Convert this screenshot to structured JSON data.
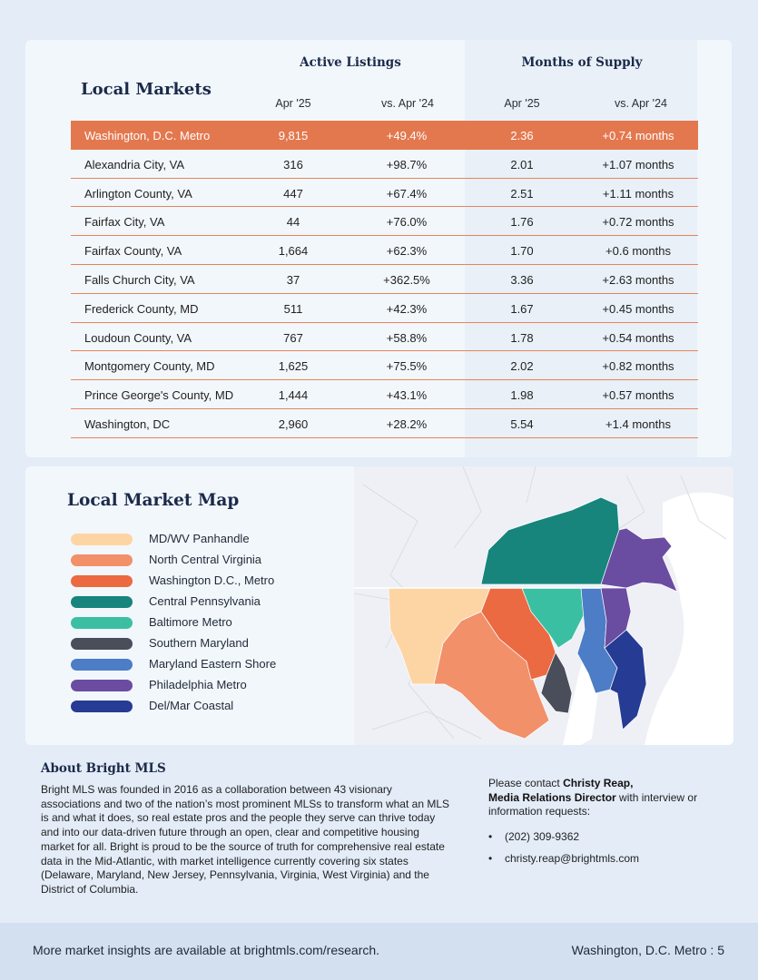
{
  "markets": {
    "title": "Local Markets",
    "group_active": "Active Listings",
    "group_supply": "Months of Supply",
    "col_apr25": "Apr '25",
    "col_vs24": "vs. Apr '24",
    "rows": [
      {
        "name": "Washington, D.C. Metro",
        "listings": "9,815",
        "listings_change": "+49.4%",
        "supply": "2.36",
        "supply_change": "+0.74 months"
      },
      {
        "name": "Alexandria City, VA",
        "listings": "316",
        "listings_change": "+98.7%",
        "supply": "2.01",
        "supply_change": "+1.07 months"
      },
      {
        "name": "Arlington County, VA",
        "listings": "447",
        "listings_change": "+67.4%",
        "supply": "2.51",
        "supply_change": "+1.11 months"
      },
      {
        "name": "Fairfax City, VA",
        "listings": "44",
        "listings_change": "+76.0%",
        "supply": "1.76",
        "supply_change": "+0.72 months"
      },
      {
        "name": "Fairfax County, VA",
        "listings": "1,664",
        "listings_change": "+62.3%",
        "supply": "1.70",
        "supply_change": "+0.6 months"
      },
      {
        "name": "Falls Church City, VA",
        "listings": "37",
        "listings_change": "+362.5%",
        "supply": "3.36",
        "supply_change": "+2.63 months"
      },
      {
        "name": "Frederick County, MD",
        "listings": "511",
        "listings_change": "+42.3%",
        "supply": "1.67",
        "supply_change": "+0.45 months"
      },
      {
        "name": "Loudoun County, VA",
        "listings": "767",
        "listings_change": "+58.8%",
        "supply": "1.78",
        "supply_change": "+0.54 months"
      },
      {
        "name": "Montgomery County, MD",
        "listings": "1,625",
        "listings_change": "+75.5%",
        "supply": "2.02",
        "supply_change": "+0.82 months"
      },
      {
        "name": "Prince George's County, MD",
        "listings": "1,444",
        "listings_change": "+43.1%",
        "supply": "1.98",
        "supply_change": "+0.57 months"
      },
      {
        "name": "Washington,  DC",
        "listings": "2,960",
        "listings_change": "+28.2%",
        "supply": "5.54",
        "supply_change": "+1.4 months"
      }
    ]
  },
  "map": {
    "title": "Local Market Map",
    "legend": [
      {
        "label": "MD/WV Panhandle",
        "color": "#fdd5a4"
      },
      {
        "label": "North Central Virginia",
        "color": "#f2906a"
      },
      {
        "label": "Washington D.C., Metro",
        "color": "#eb6a42"
      },
      {
        "label": "Central Pennsylvania",
        "color": "#17857c"
      },
      {
        "label": "Baltimore Metro",
        "color": "#3bbfa3"
      },
      {
        "label": "Southern Maryland",
        "color": "#4a4d5a"
      },
      {
        "label": "Maryland Eastern Shore",
        "color": "#4c7dc6"
      },
      {
        "label": "Philadelphia Metro",
        "color": "#6a4ca0"
      },
      {
        "label": "Del/Mar Coastal",
        "color": "#253b94"
      }
    ]
  },
  "about": {
    "title": "About Bright MLS",
    "body": "Bright MLS was founded in 2016 as a collaboration between 43 visionary associations and two of the nation’s most prominent MLSs to transform what an MLS is and what it does, so real estate pros and the people they serve can thrive today and into our data-driven future through an open, clear and competitive housing market for all. Bright is proud to be the source of truth for comprehensive real estate data in the Mid-Atlantic, with market intelligence currently covering six states (Delaware, Maryland, New Jersey, Pennsylvania, Virginia, West Virginia) and the District of Columbia.",
    "contact_prefix": "Please contact ",
    "contact_name": "Christy Reap,",
    "contact_role": "Media Relations Director",
    "contact_suffix": " with interview or information requests:",
    "phone": "(202) 309-9362",
    "email": "christy.reap@brightmls.com",
    "bullet": "•"
  },
  "footer": {
    "left": "More market insights are available at brightmls.com/research.",
    "right": "Washington, D.C. Metro  :  5"
  }
}
